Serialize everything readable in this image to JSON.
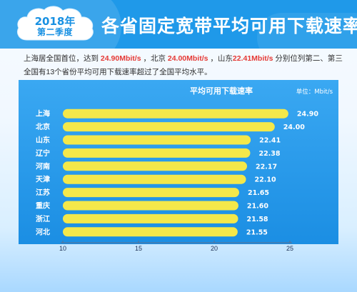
{
  "header": {
    "year_label": "2018年",
    "quarter_label": "第二季度",
    "title": "各省固定宽带平均可用下载速率"
  },
  "summary": {
    "line1_part1": "上海居全国首位，达到 ",
    "shanghai_value": "24.90Mbit/s",
    "line1_part2": " ，北京 ",
    "beijing_value": "24.00Mbit/s",
    "line1_part3": " ，山东",
    "shandong_value": "22.41Mbit/s",
    "line1_part4": " 分别位列第二、第三",
    "line2": "全国有13个省份平均可用下载速率超过了全国平均水平。"
  },
  "colors": {
    "header_bg": "#1f99e9",
    "bar_fill": "#f4e84a",
    "highlight_text": "#e53935",
    "label_text": "#ffffff",
    "axis_text": "#1b2f55"
  },
  "chart_data": {
    "type": "bar",
    "orientation": "horizontal",
    "title": "平均可用下载速率",
    "unit": "单位：Mbit/s",
    "categories": [
      "上海",
      "北京",
      "山东",
      "辽宁",
      "河南",
      "天津",
      "江苏",
      "重庆",
      "浙江",
      "河北"
    ],
    "values": [
      24.9,
      24.0,
      22.41,
      22.38,
      22.17,
      22.1,
      21.65,
      21.6,
      21.58,
      21.55
    ],
    "value_labels": [
      "24.90",
      "24.00",
      "22.41",
      "22.38",
      "22.17",
      "22.10",
      "21.65",
      "21.60",
      "21.58",
      "21.55"
    ],
    "xlim": [
      10,
      25
    ],
    "xticks": [
      10,
      15,
      20,
      25
    ],
    "xtick_labels": [
      "10",
      "15",
      "20",
      "25"
    ],
    "grid": false,
    "legend": "none"
  }
}
